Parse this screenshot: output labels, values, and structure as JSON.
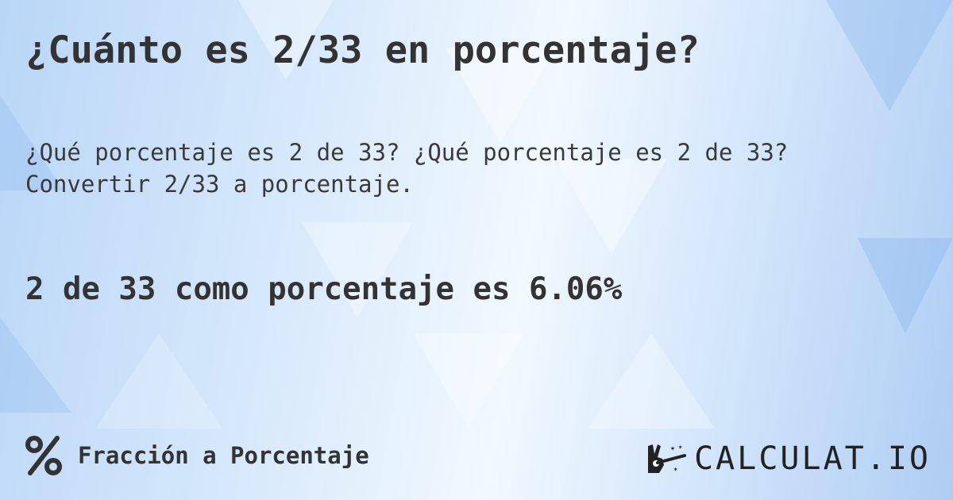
{
  "header": {
    "title": "¿Cuánto es 2/33 en porcentaje?"
  },
  "description": {
    "line1": "¿Qué porcentaje es 2 de 33? ¿Qué porcentaje es 2 de 33?",
    "line2": "Convertir 2/33 a porcentaje."
  },
  "result": {
    "text": "2 de 33 como porcentaje es 6.06%"
  },
  "footer": {
    "category_icon": "percent-icon",
    "category_label": "Fracción a Porcentaje"
  },
  "logo": {
    "text": "CALCULAT.IO",
    "icon": "magic-hand-icon"
  },
  "colors": {
    "text": "#333333",
    "background_light": "#f1f8fe",
    "background_blue": "#aecdf3"
  }
}
